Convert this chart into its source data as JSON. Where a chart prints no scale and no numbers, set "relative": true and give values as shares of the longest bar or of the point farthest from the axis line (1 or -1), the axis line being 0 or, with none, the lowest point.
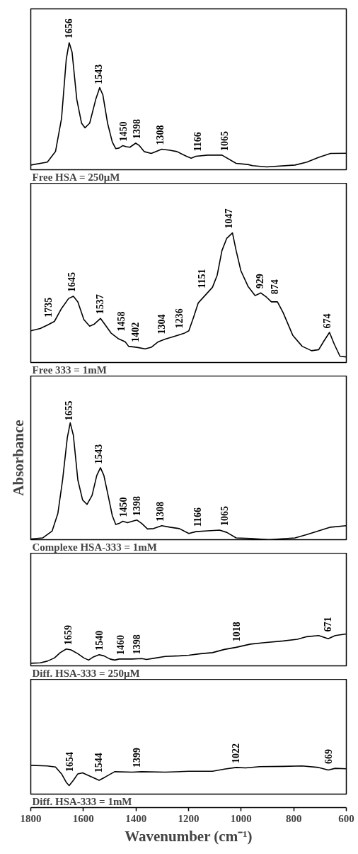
{
  "chart_data": [
    {
      "type": "line",
      "title": "Free HSA = 250μM",
      "relative": true,
      "xlim": [
        1800,
        600
      ],
      "xticks": [
        1800,
        1600,
        1400,
        1200,
        1000,
        800,
        600
      ],
      "tick_labels": false,
      "grid": false,
      "x": [
        1800,
        1737,
        1706,
        1683,
        1665,
        1654,
        1643,
        1625,
        1607,
        1594,
        1576,
        1553,
        1538,
        1526,
        1508,
        1490,
        1477,
        1464,
        1450,
        1437,
        1423,
        1401,
        1387,
        1369,
        1342,
        1320,
        1302,
        1271,
        1244,
        1208,
        1190,
        1172,
        1127,
        1073,
        1019,
        974,
        957,
        903,
        795,
        750,
        705,
        660,
        600
      ],
      "series": [
        {
          "color": "#000000",
          "values": [
            0.037,
            0.06,
            0.143,
            0.404,
            0.87,
            1,
            0.926,
            0.553,
            0.367,
            0.33,
            0.367,
            0.553,
            0.646,
            0.59,
            0.367,
            0.218,
            0.166,
            0.171,
            0.19,
            0.181,
            0.177,
            0.209,
            0.19,
            0.143,
            0.128,
            0.147,
            0.162,
            0.153,
            0.143,
            0.106,
            0.091,
            0.106,
            0.115,
            0.115,
            0.05,
            0.041,
            0.032,
            0.022,
            0.037,
            0.06,
            0.097,
            0.128,
            0.13
          ]
        }
      ],
      "annotations": [
        {
          "text": "1656",
          "x": 1656,
          "y": 1
        },
        {
          "text": "1543",
          "x": 1543,
          "y": 0.64
        },
        {
          "text": "1450",
          "x": 1450,
          "y": 0.19
        },
        {
          "text": "1398",
          "x": 1398,
          "y": 0.209
        },
        {
          "text": "1308",
          "x": 1308,
          "y": 0.16
        },
        {
          "text": "1166",
          "x": 1166,
          "y": 0.106
        },
        {
          "text": "1065",
          "x": 1065,
          "y": 0.11
        }
      ]
    },
    {
      "type": "line",
      "title": "Free 333 = 1mM",
      "relative": true,
      "xlim": [
        1800,
        600
      ],
      "xticks": [
        1800,
        1600,
        1400,
        1200,
        1000,
        800,
        600
      ],
      "tick_labels": false,
      "grid": false,
      "x": [
        1800,
        1764,
        1737,
        1710,
        1683,
        1656,
        1638,
        1621,
        1598,
        1576,
        1558,
        1535,
        1522,
        1495,
        1468,
        1441,
        1428,
        1396,
        1365,
        1342,
        1315,
        1289,
        1253,
        1217,
        1199,
        1181,
        1163,
        1136,
        1109,
        1091,
        1073,
        1055,
        1033,
        1019,
        1001,
        974,
        947,
        925,
        903,
        885,
        862,
        840,
        804,
        768,
        732,
        705,
        687,
        664,
        646,
        624,
        600
      ],
      "series": [
        {
          "color": "#000000",
          "values": [
            0.245,
            0.262,
            0.288,
            0.317,
            0.417,
            0.494,
            0.511,
            0.468,
            0.331,
            0.28,
            0.297,
            0.34,
            0.305,
            0.228,
            0.185,
            0.16,
            0.125,
            0.117,
            0.105,
            0.117,
            0.16,
            0.18,
            0.202,
            0.225,
            0.245,
            0.348,
            0.46,
            0.52,
            0.58,
            0.674,
            0.863,
            0.957,
            1,
            0.863,
            0.708,
            0.588,
            0.516,
            0.537,
            0.503,
            0.468,
            0.468,
            0.383,
            0.211,
            0.125,
            0.091,
            0.099,
            0.16,
            0.232,
            0.142,
            0.048,
            0.043
          ]
        }
      ],
      "annotations": [
        {
          "text": "1735",
          "x": 1735,
          "y": 0.29
        },
        {
          "text": "1645",
          "x": 1645,
          "y": 0.505
        },
        {
          "text": "1537",
          "x": 1537,
          "y": 0.34
        },
        {
          "text": "1458",
          "x": 1458,
          "y": 0.175
        },
        {
          "text": "1402",
          "x": 1402,
          "y": 0.118
        },
        {
          "text": "1304",
          "x": 1304,
          "y": 0.17
        },
        {
          "text": "1236",
          "x": 1236,
          "y": 0.21
        },
        {
          "text": "1151",
          "x": 1151,
          "y": 0.5
        },
        {
          "text": "1047",
          "x": 1047,
          "y": 0.97
        },
        {
          "text": "929",
          "x": 929,
          "y": 0.53
        },
        {
          "text": "874",
          "x": 874,
          "y": 0.468
        },
        {
          "text": "674",
          "x": 674,
          "y": 0.19
        }
      ]
    },
    {
      "type": "line",
      "title": "Complexe HSA-333 = 1mM",
      "ylabel": "Absorbance",
      "relative": true,
      "xlim": [
        1800,
        600
      ],
      "xticks": [
        1800,
        1600,
        1400,
        1200,
        1000,
        800,
        600
      ],
      "tick_labels": false,
      "grid": false,
      "x": [
        1800,
        1755,
        1719,
        1697,
        1679,
        1661,
        1650,
        1638,
        1621,
        1603,
        1586,
        1567,
        1549,
        1535,
        1522,
        1504,
        1490,
        1477,
        1464,
        1450,
        1432,
        1414,
        1396,
        1378,
        1356,
        1333,
        1302,
        1271,
        1235,
        1199,
        1172,
        1127,
        1082,
        1055,
        1019,
        965,
        894,
        795,
        750,
        705,
        660,
        600
      ],
      "series": [
        {
          "color": "#000000",
          "values": [
            0.006,
            0.015,
            0.073,
            0.225,
            0.511,
            0.874,
            1,
            0.893,
            0.511,
            0.34,
            0.302,
            0.378,
            0.55,
            0.616,
            0.55,
            0.359,
            0.206,
            0.13,
            0.139,
            0.158,
            0.145,
            0.158,
            0.168,
            0.139,
            0.092,
            0.095,
            0.12,
            0.107,
            0.095,
            0.053,
            0.069,
            0.076,
            0.082,
            0.063,
            0.015,
            0.01,
            0,
            0.015,
            0.044,
            0.076,
            0.107,
            0.12
          ]
        }
      ],
      "annotations": [
        {
          "text": "1655",
          "x": 1655,
          "y": 0.96
        },
        {
          "text": "1543",
          "x": 1543,
          "y": 0.59
        },
        {
          "text": "1450",
          "x": 1450,
          "y": 0.158
        },
        {
          "text": "1398",
          "x": 1398,
          "y": 0.167
        },
        {
          "text": "1308",
          "x": 1308,
          "y": 0.115
        },
        {
          "text": "1166",
          "x": 1166,
          "y": 0.07
        },
        {
          "text": "1065",
          "x": 1065,
          "y": 0.07
        }
      ]
    },
    {
      "type": "line",
      "title": "Diff. HSA-333 = 250μM",
      "relative": true,
      "xlim": [
        1800,
        600
      ],
      "xticks": [
        1800,
        1600,
        1400,
        1200,
        1000,
        800,
        600
      ],
      "tick_labels": false,
      "grid": false,
      "x": [
        1800,
        1764,
        1737,
        1710,
        1688,
        1665,
        1647,
        1621,
        1598,
        1580,
        1562,
        1540,
        1522,
        1499,
        1481,
        1464,
        1414,
        1378,
        1360,
        1324,
        1289,
        1235,
        1199,
        1154,
        1109,
        1064,
        1019,
        965,
        911,
        840,
        786,
        750,
        705,
        669,
        642,
        600
      ],
      "series": [
        {
          "color": "#000000",
          "values": [
            0.08,
            0.093,
            0.147,
            0.247,
            0.413,
            0.527,
            0.5,
            0.38,
            0.247,
            0.18,
            0.28,
            0.347,
            0.313,
            0.213,
            0.18,
            0.213,
            0.213,
            0.227,
            0.2,
            0.247,
            0.293,
            0.313,
            0.333,
            0.38,
            0.413,
            0.513,
            0.58,
            0.68,
            0.727,
            0.78,
            0.833,
            0.913,
            0.947,
            0.847,
            0.947,
            1
          ]
        }
      ],
      "annotations": [
        {
          "text": "1659",
          "x": 1659,
          "y": 0.52
        },
        {
          "text": "1540",
          "x": 1540,
          "y": 0.347
        },
        {
          "text": "1460",
          "x": 1460,
          "y": 0.213
        },
        {
          "text": "1398",
          "x": 1398,
          "y": 0.225
        },
        {
          "text": "1018",
          "x": 1018,
          "y": 0.58
        },
        {
          "text": "671",
          "x": 671,
          "y": 0.85
        }
      ]
    },
    {
      "type": "line",
      "title": "Diff. HSA-333 = 1mM",
      "xlabel": "Wavenumber (cm⁻¹)",
      "relative": true,
      "xlim": [
        1800,
        600
      ],
      "xticks": [
        1800,
        1600,
        1400,
        1200,
        1000,
        800,
        600
      ],
      "tick_labels": "x",
      "grid": false,
      "x": [
        1800,
        1737,
        1706,
        1683,
        1665,
        1654,
        1638,
        1621,
        1603,
        1576,
        1540,
        1517,
        1481,
        1414,
        1378,
        1289,
        1199,
        1109,
        1064,
        1019,
        983,
        929,
        840,
        768,
        705,
        669,
        642,
        600
      ],
      "series": [
        {
          "color": "#000000",
          "values": [
            1,
            0.978,
            0.941,
            0.704,
            0.407,
            0.296,
            0.481,
            0.704,
            0.741,
            0.63,
            0.481,
            0.593,
            0.778,
            0.763,
            0.778,
            0.763,
            0.793,
            0.793,
            0.867,
            0.926,
            0.911,
            0.956,
            0.963,
            0.978,
            0.926,
            0.837,
            0.896,
            0.881
          ]
        }
      ],
      "annotations": [
        {
          "text": "1654",
          "x": 1654,
          "y": 0.296
        },
        {
          "text": "1544",
          "x": 1544,
          "y": 0.5
        },
        {
          "text": "1399",
          "x": 1399,
          "y": 0.778
        },
        {
          "text": "1022",
          "x": 1022,
          "y": 0.925
        },
        {
          "text": "669",
          "x": 669,
          "y": 0.837
        }
      ]
    }
  ]
}
